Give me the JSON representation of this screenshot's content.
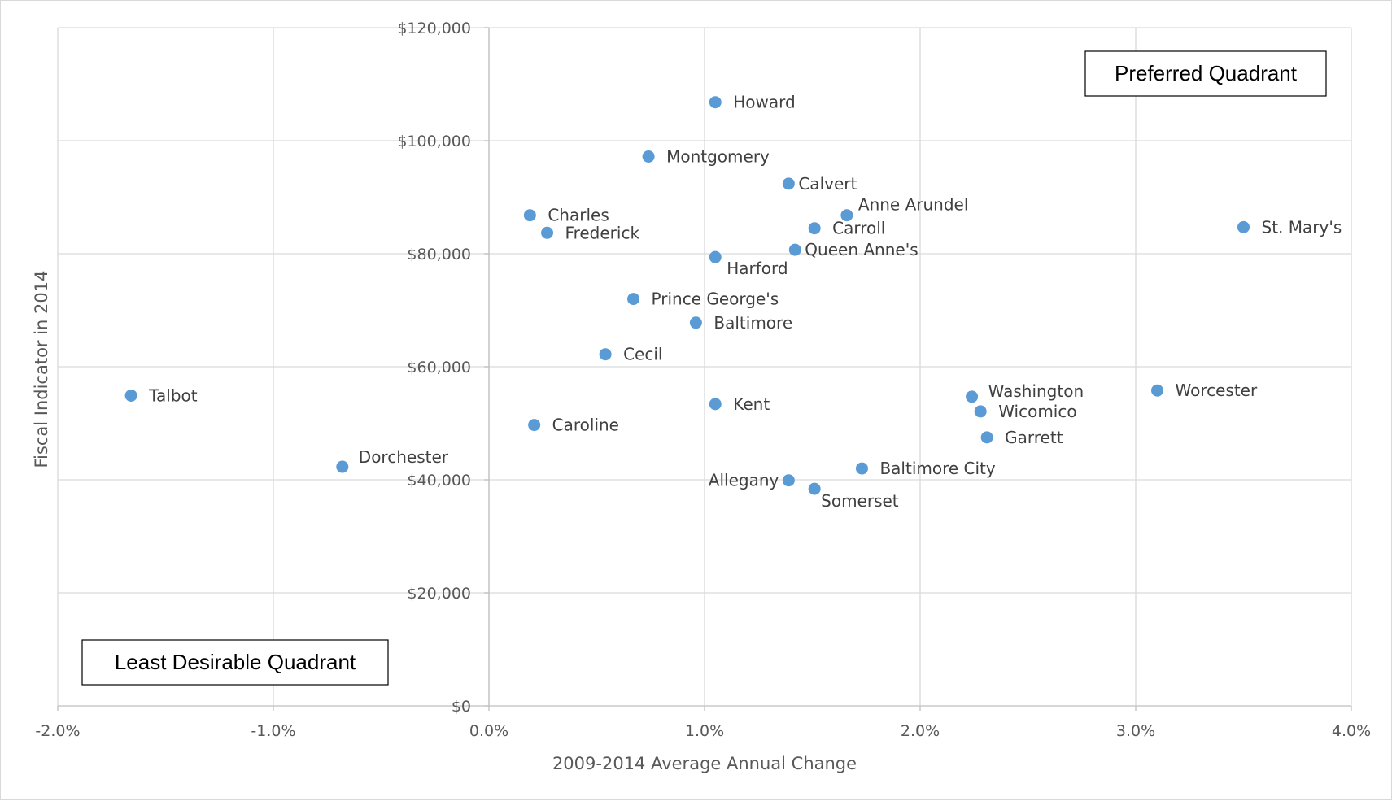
{
  "chart_data": {
    "type": "scatter",
    "xlabel": "2009-2014 Average Annual Change",
    "ylabel": "Fiscal Indicator in 2014",
    "xlim": [
      -0.02,
      0.04
    ],
    "ylim": [
      0,
      120000
    ],
    "x_ticks": [
      -0.02,
      -0.01,
      0.0,
      0.01,
      0.02,
      0.03,
      0.04
    ],
    "x_tick_labels": [
      "-2.0%",
      "-1.0%",
      "0.0%",
      "1.0%",
      "2.0%",
      "3.0%",
      "4.0%"
    ],
    "y_ticks": [
      0,
      20000,
      40000,
      60000,
      80000,
      100000,
      120000
    ],
    "y_tick_labels": [
      "$0",
      "$20,000",
      "$40,000",
      "$60,000",
      "$80,000",
      "$100,000",
      "$120,000"
    ],
    "grid": true,
    "marker_color": "#5B9BD5",
    "points": [
      {
        "label": "Howard",
        "x": 0.0105,
        "y": 106800
      },
      {
        "label": "Montgomery",
        "x": 0.0074,
        "y": 97200
      },
      {
        "label": "Calvert",
        "x": 0.0139,
        "y": 92400
      },
      {
        "label": "Anne Arundel",
        "x": 0.0166,
        "y": 86800
      },
      {
        "label": "Charles",
        "x": 0.0019,
        "y": 86800
      },
      {
        "label": "Frederick",
        "x": 0.0027,
        "y": 83700
      },
      {
        "label": "Carroll",
        "x": 0.0151,
        "y": 84500
      },
      {
        "label": "St. Mary's",
        "x": 0.035,
        "y": 84700
      },
      {
        "label": "Queen Anne's",
        "x": 0.0142,
        "y": 80700
      },
      {
        "label": "Harford",
        "x": 0.0105,
        "y": 79400
      },
      {
        "label": "Prince George's",
        "x": 0.0067,
        "y": 72000
      },
      {
        "label": "Baltimore",
        "x": 0.0096,
        "y": 67800
      },
      {
        "label": "Cecil",
        "x": 0.0054,
        "y": 62200
      },
      {
        "label": "Talbot",
        "x": -0.0166,
        "y": 54900
      },
      {
        "label": "Kent",
        "x": 0.0105,
        "y": 53400
      },
      {
        "label": "Caroline",
        "x": 0.0021,
        "y": 49700
      },
      {
        "label": "Washington",
        "x": 0.0224,
        "y": 54700
      },
      {
        "label": "Wicomico",
        "x": 0.0228,
        "y": 52100
      },
      {
        "label": "Worcester",
        "x": 0.031,
        "y": 55800
      },
      {
        "label": "Garrett",
        "x": 0.0231,
        "y": 47500
      },
      {
        "label": "Baltimore City",
        "x": 0.0173,
        "y": 42000
      },
      {
        "label": "Dorchester",
        "x": -0.0068,
        "y": 42300
      },
      {
        "label": "Allegany",
        "x": 0.0139,
        "y": 39900
      },
      {
        "label": "Somerset",
        "x": 0.0151,
        "y": 38400
      }
    ],
    "annotations": {
      "top_right": "Preferred Quadrant",
      "bottom_left": "Least Desirable Quadrant"
    }
  }
}
